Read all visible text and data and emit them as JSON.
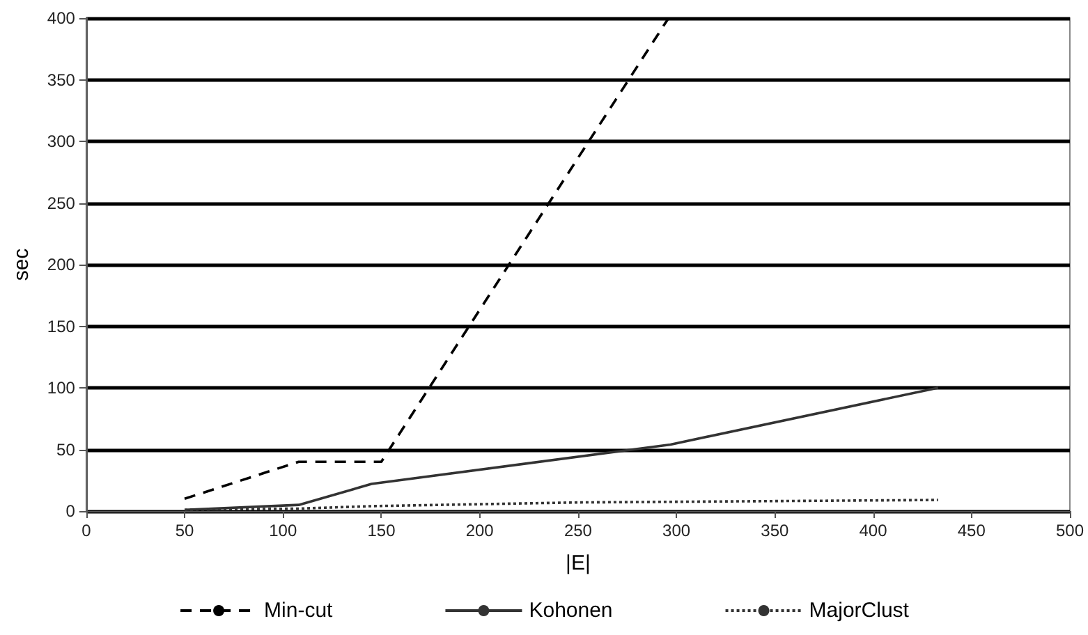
{
  "chart_data": {
    "type": "line",
    "xlabel": "|E|",
    "ylabel": "sec",
    "xlim": [
      0,
      500
    ],
    "xticks": [
      0,
      50,
      100,
      150,
      200,
      250,
      300,
      350,
      400,
      450,
      500
    ],
    "ylim": [
      0,
      400
    ],
    "yticks": [
      0,
      50,
      100,
      150,
      200,
      250,
      300,
      350,
      400
    ],
    "grid": "y",
    "legend": "bottom",
    "marker": "none",
    "series": [
      {
        "name": "Min-cut",
        "color": "#000000",
        "line_style": "dashed",
        "x": [
          50,
          108,
          150,
          296
        ],
        "values": [
          10,
          40,
          40,
          400
        ]
      },
      {
        "name": "Kohonen",
        "color": "#333333",
        "line_style": "solid",
        "x": [
          50,
          108,
          145,
          297,
          433
        ],
        "values": [
          1,
          5,
          22,
          54,
          100
        ]
      },
      {
        "name": "MajorClust",
        "color": "#333333",
        "line_style": "dotted",
        "x": [
          50,
          108,
          145,
          250,
          433
        ],
        "values": [
          1,
          2,
          4,
          7,
          9
        ]
      }
    ]
  }
}
